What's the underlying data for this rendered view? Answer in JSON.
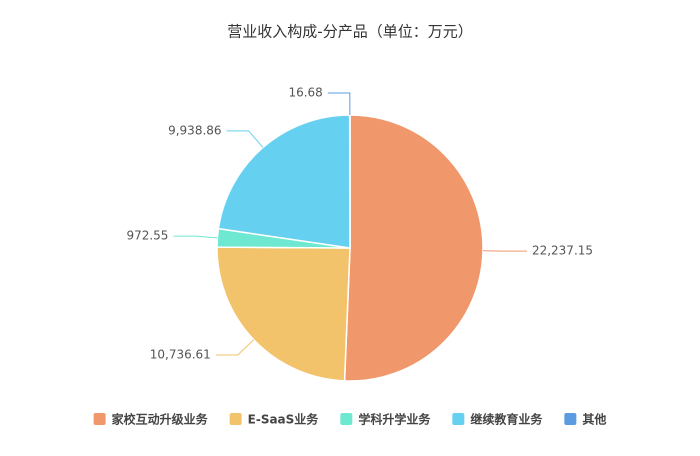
{
  "chart_data": {
    "type": "pie",
    "title": "营业收入构成-分产品（单位：万元）",
    "categories": [
      "家校互动升级业务",
      "E-SaaS业务",
      "学科升学业务",
      "继续教育业务",
      "其他"
    ],
    "values": [
      22237.15,
      10736.61,
      972.55,
      9938.86,
      16.68
    ],
    "value_labels": [
      "22,237.15",
      "10,736.61",
      "972.55",
      "9,938.86",
      "16.68"
    ],
    "colors": [
      "#f0976b",
      "#f2c36b",
      "#6ee8d0",
      "#66d0f0",
      "#5b9be0"
    ]
  }
}
